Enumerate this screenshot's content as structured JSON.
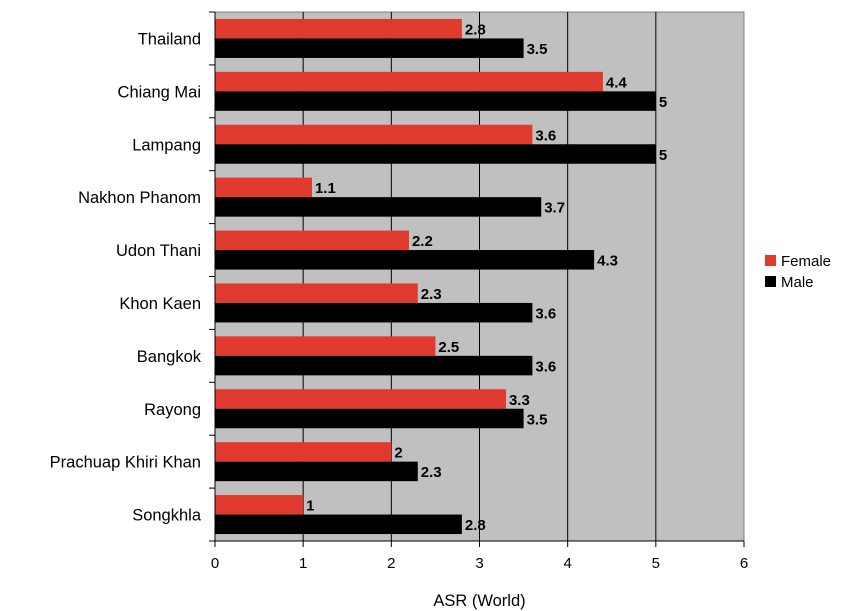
{
  "chart_data": {
    "type": "bar",
    "orientation": "horizontal",
    "categories": [
      "Thailand",
      "Chiang Mai",
      "Lampang",
      "Nakhon Phanom",
      "Udon Thani",
      "Khon Kaen",
      "Bangkok",
      "Rayong",
      "Prachuap Khiri Khan",
      "Songkhla"
    ],
    "series": [
      {
        "name": "Female",
        "color": "#e03a2f",
        "values": [
          2.8,
          4.4,
          3.6,
          1.1,
          2.2,
          2.3,
          2.5,
          3.3,
          2,
          1
        ]
      },
      {
        "name": "Male",
        "color": "#000000",
        "values": [
          3.5,
          5,
          5,
          3.7,
          4.3,
          3.6,
          3.6,
          3.5,
          2.3,
          2.8
        ]
      }
    ],
    "data_labels": {
      "Female": [
        "2.8",
        "4.4",
        "3.6",
        "1.1",
        "2.2",
        "2.3",
        "2.5",
        "3.3",
        "2",
        "1"
      ],
      "Male": [
        "3.5",
        "5",
        "5",
        "3.7",
        "4.3",
        "3.6",
        "3.6",
        "3.5",
        "2.3",
        "2.8"
      ]
    },
    "xlabel": "ASR (World)",
    "ylabel": "",
    "xlim": [
      0,
      6
    ],
    "xticks": [
      "0",
      "1",
      "2",
      "3",
      "4",
      "5",
      "6"
    ],
    "grid": "vertical",
    "plot_background": "#c0c0c0",
    "legend": "right"
  }
}
